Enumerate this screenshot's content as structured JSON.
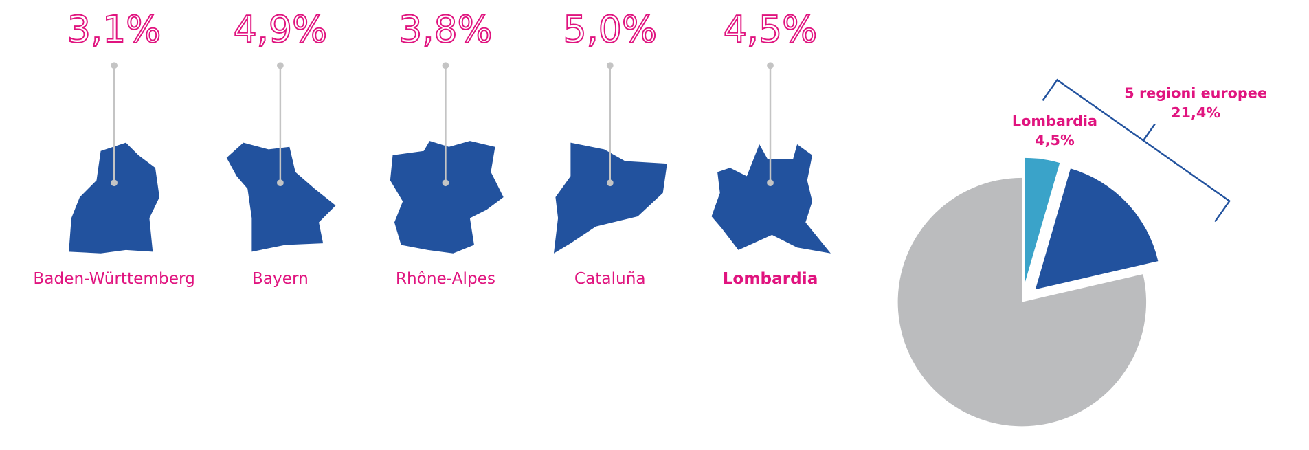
{
  "chart_data": [
    {
      "type": "pictogram",
      "categories": [
        "Baden-Württemberg",
        "Bayern",
        "Rhône-Alpes",
        "Cataluña",
        "Lombardia"
      ],
      "values": [
        3.1,
        4.9,
        3.8,
        5.0,
        4.5
      ],
      "value_labels": [
        "3,1%",
        "4,9%",
        "3,8%",
        "5,0%",
        "4,5%"
      ],
      "color": "#22529e",
      "label_color": "#e0147f",
      "bold_index": 4
    },
    {
      "type": "pie",
      "categories": [
        "Lombardia",
        null,
        null
      ],
      "values": [
        4.5,
        16.9,
        78.6
      ],
      "value_labels": [
        "4,5%",
        null,
        null
      ],
      "colors": [
        "#3aa3c9",
        "#22529e",
        "#bbbcbe"
      ],
      "label_color": "#e0147f",
      "group": {
        "label": "5 regioni europee",
        "value": 21.4,
        "value_label": "21,4%"
      }
    }
  ]
}
